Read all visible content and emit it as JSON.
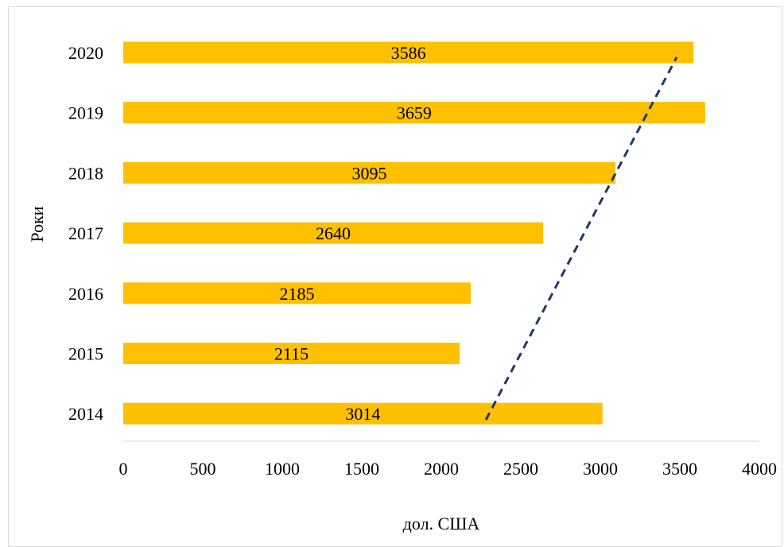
{
  "chart_data": {
    "type": "bar",
    "orientation": "horizontal",
    "categories": [
      "2014",
      "2015",
      "2016",
      "2017",
      "2018",
      "2019",
      "2020"
    ],
    "values": [
      3014,
      2115,
      2185,
      2640,
      3095,
      3659,
      3586
    ],
    "data_labels": [
      "3014",
      "2115",
      "2185",
      "2640",
      "3095",
      "3659",
      "3586"
    ],
    "xlabel": "дол. США",
    "ylabel": "Роки",
    "xlim": [
      0,
      4000
    ],
    "xticks": [
      "0",
      "500",
      "1000",
      "1500",
      "2000",
      "2500",
      "3000",
      "3500",
      "4000"
    ],
    "grid": false,
    "bar_color": "#FFC000",
    "trendline": {
      "style": "dashed",
      "type": "linear",
      "color": "#1F3864",
      "start": {
        "category": "2014",
        "value": 2280
      },
      "end": {
        "category": "2020",
        "value": 3480
      }
    }
  }
}
